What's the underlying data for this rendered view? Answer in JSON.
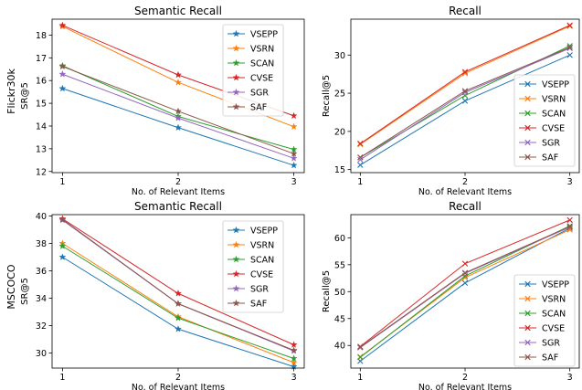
{
  "rows": [
    {
      "label_line1": "Flickr30k",
      "label_line2": ""
    },
    {
      "label_line1": "MSCOCO",
      "label_line2": ""
    }
  ],
  "series_styles": [
    {
      "name": "VSEPP",
      "color": "#1f77b4",
      "marker": "star"
    },
    {
      "name": "VSRN",
      "color": "#ff7f0e",
      "marker": "x"
    },
    {
      "name": "SCAN",
      "color": "#2ca02c",
      "marker": "star"
    },
    {
      "name": "CVSE",
      "color": "#d62728",
      "marker": "x"
    },
    {
      "name": "SGR",
      "color": "#9467bd",
      "marker": "star"
    },
    {
      "name": "SAF",
      "color": "#8c564b",
      "marker": "x"
    }
  ],
  "chart_data": [
    {
      "type": "line",
      "title": "Semantic Recall",
      "xlabel": "No. of Relevant Items",
      "ylabel": "SR@5",
      "row_label": "Flickr30k",
      "x": [
        1,
        2,
        3
      ],
      "xticks": [
        "1",
        "2",
        "3"
      ],
      "ylim": [
        11.95,
        18.7
      ],
      "yticks": [
        "12",
        "13",
        "14",
        "15",
        "16",
        "17",
        "18"
      ],
      "ytick_values": [
        12,
        13,
        14,
        15,
        16,
        17,
        18
      ],
      "marker_style": "star",
      "legend": "top-right",
      "series": [
        {
          "name": "VSEPP",
          "values": [
            15.65,
            13.93,
            12.27
          ]
        },
        {
          "name": "VSRN",
          "values": [
            18.38,
            15.92,
            13.97
          ]
        },
        {
          "name": "SCAN",
          "values": [
            16.65,
            14.42,
            12.97
          ]
        },
        {
          "name": "CVSE",
          "values": [
            18.43,
            16.25,
            14.45
          ]
        },
        {
          "name": "SGR",
          "values": [
            16.28,
            14.35,
            12.58
          ]
        },
        {
          "name": "SAF",
          "values": [
            16.62,
            14.65,
            12.78
          ]
        }
      ]
    },
    {
      "type": "line",
      "title": "Recall",
      "xlabel": "No. of Relevant Items",
      "ylabel": "Recall@5",
      "x": [
        1,
        2,
        3
      ],
      "xticks": [
        "1",
        "2",
        "3"
      ],
      "ylim": [
        14.6,
        34.7
      ],
      "yticks": [
        "15",
        "20",
        "25",
        "30"
      ],
      "ytick_values": [
        15,
        20,
        25,
        30
      ],
      "marker_style": "x",
      "legend": "lower-right",
      "series": [
        {
          "name": "VSEPP",
          "values": [
            15.6,
            24.0,
            30.0
          ]
        },
        {
          "name": "VSRN",
          "values": [
            18.3,
            27.6,
            33.8
          ]
        },
        {
          "name": "SCAN",
          "values": [
            16.6,
            24.7,
            31.2
          ]
        },
        {
          "name": "CVSE",
          "values": [
            18.4,
            27.8,
            33.9
          ]
        },
        {
          "name": "SGR",
          "values": [
            16.3,
            25.1,
            30.9
          ]
        },
        {
          "name": "SAF",
          "values": [
            16.6,
            25.3,
            31.0
          ]
        }
      ]
    },
    {
      "type": "line",
      "title": "Semantic Recall",
      "xlabel": "No. of Relevant Items",
      "ylabel": "SR@5",
      "row_label": "MSCOCO",
      "x": [
        1,
        2,
        3
      ],
      "xticks": [
        "1",
        "2",
        "3"
      ],
      "ylim": [
        28.9,
        40.1
      ],
      "yticks": [
        "30",
        "32",
        "34",
        "36",
        "38",
        "40"
      ],
      "ytick_values": [
        30,
        32,
        34,
        36,
        38,
        40
      ],
      "marker_style": "star",
      "legend": "top-right",
      "series": [
        {
          "name": "VSEPP",
          "values": [
            37.0,
            31.75,
            29.0
          ]
        },
        {
          "name": "VSRN",
          "values": [
            38.0,
            32.65,
            29.3
          ]
        },
        {
          "name": "SCAN",
          "values": [
            37.8,
            32.55,
            29.6
          ]
        },
        {
          "name": "CVSE",
          "values": [
            39.8,
            34.35,
            30.6
          ]
        },
        {
          "name": "SGR",
          "values": [
            39.7,
            33.6,
            30.15
          ]
        },
        {
          "name": "SAF",
          "values": [
            39.75,
            33.6,
            30.2
          ]
        }
      ]
    },
    {
      "type": "line",
      "title": "Recall",
      "xlabel": "No. of Relevant Items",
      "ylabel": "Recall@5",
      "x": [
        1,
        2,
        3
      ],
      "xticks": [
        "1",
        "2",
        "3"
      ],
      "ylim": [
        35.8,
        64.3
      ],
      "yticks": [
        "40",
        "45",
        "50",
        "55",
        "60"
      ],
      "ytick_values": [
        40,
        45,
        50,
        55,
        60
      ],
      "marker_style": "x",
      "legend": "lower-right",
      "series": [
        {
          "name": "VSEPP",
          "values": [
            37.1,
            51.6,
            61.8
          ]
        },
        {
          "name": "VSRN",
          "values": [
            37.9,
            52.6,
            61.5
          ]
        },
        {
          "name": "SCAN",
          "values": [
            37.8,
            52.9,
            62.2
          ]
        },
        {
          "name": "CVSE",
          "values": [
            39.8,
            55.2,
            63.3
          ]
        },
        {
          "name": "SGR",
          "values": [
            39.6,
            53.4,
            62.0
          ]
        },
        {
          "name": "SAF",
          "values": [
            39.7,
            53.5,
            62.1
          ]
        }
      ]
    }
  ]
}
